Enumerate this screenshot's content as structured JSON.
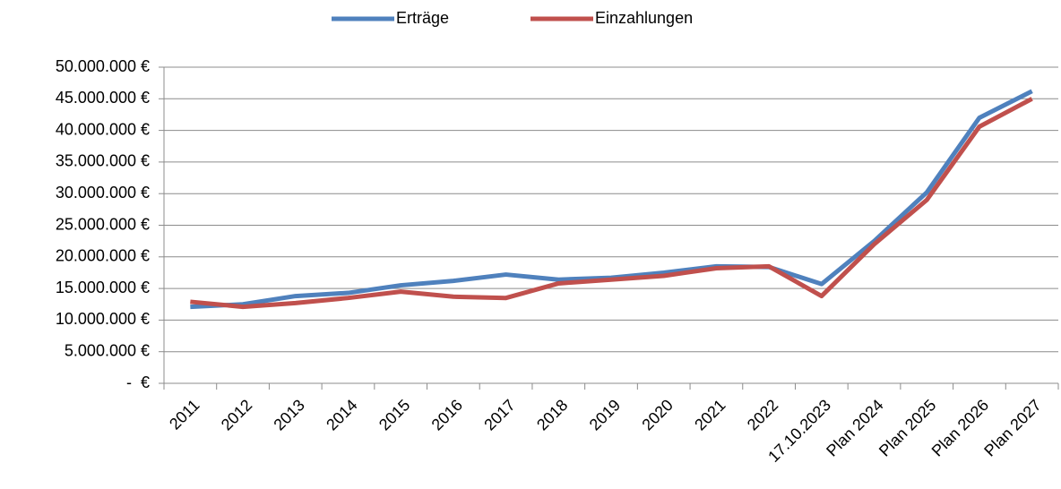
{
  "chart_data": {
    "type": "line",
    "categories": [
      "2011",
      "2012",
      "2013",
      "2014",
      "2015",
      "2016",
      "2017",
      "2018",
      "2019",
      "2020",
      "2021",
      "2022",
      "17.10.2023",
      "Plan 2024",
      "Plan 2025",
      "Plan 2026",
      "Plan 2027"
    ],
    "series": [
      {
        "name": "Erträge",
        "color": "#4f81bd",
        "values": [
          12100000,
          12500000,
          13800000,
          14300000,
          15500000,
          16200000,
          17200000,
          16400000,
          16700000,
          17500000,
          18500000,
          18400000,
          15700000,
          22500000,
          30200000,
          42000000,
          46200000
        ]
      },
      {
        "name": "Einzahlungen",
        "color": "#c0504d",
        "values": [
          12900000,
          12100000,
          12700000,
          13500000,
          14500000,
          13700000,
          13500000,
          15800000,
          16400000,
          17000000,
          18200000,
          18500000,
          13800000,
          22000000,
          29000000,
          40600000,
          45000000
        ]
      }
    ],
    "ylim": [
      0,
      50000000
    ],
    "yticks": [
      {
        "value": 0,
        "label": "-  €"
      },
      {
        "value": 5000000,
        "label": "5.000.000 €"
      },
      {
        "value": 10000000,
        "label": "10.000.000 €"
      },
      {
        "value": 15000000,
        "label": "15.000.000 €"
      },
      {
        "value": 20000000,
        "label": "20.000.000 €"
      },
      {
        "value": 25000000,
        "label": "25.000.000 €"
      },
      {
        "value": 30000000,
        "label": "30.000.000 €"
      },
      {
        "value": 35000000,
        "label": "35.000.000 €"
      },
      {
        "value": 40000000,
        "label": "40.000.000 €"
      },
      {
        "value": 45000000,
        "label": "45.000.000 €"
      },
      {
        "value": 50000000,
        "label": "50.000.000 €"
      }
    ],
    "grid": true,
    "legend": "top"
  }
}
